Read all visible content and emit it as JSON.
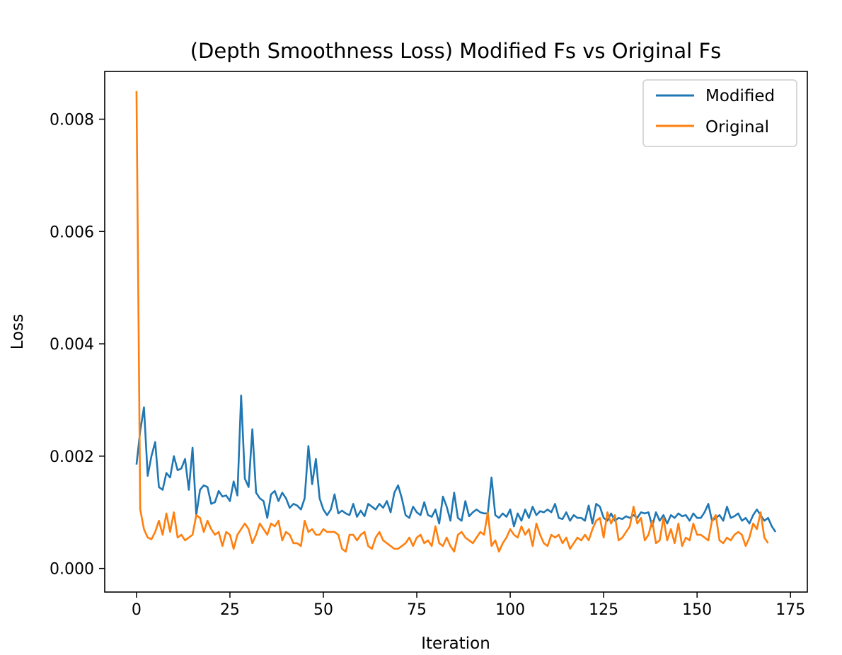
{
  "chart_data": {
    "type": "line",
    "title": "(Depth Smoothness Loss) Modified Fs vs Original Fs",
    "xlabel": "Iteration",
    "ylabel": "Loss",
    "xlim": [
      -8.5,
      179.5
    ],
    "ylim": [
      -0.00042,
      0.00885
    ],
    "xticks": [
      0,
      25,
      50,
      75,
      100,
      125,
      150,
      175
    ],
    "yticks": [
      0.0,
      0.002,
      0.004,
      0.006,
      0.008
    ],
    "ytick_labels": [
      "0.000",
      "0.002",
      "0.004",
      "0.006",
      "0.008"
    ],
    "grid": false,
    "legend": {
      "position": "top-right"
    },
    "series": [
      {
        "name": "Modified",
        "color": "#1f77b4",
        "values": [
          0.00185,
          0.00245,
          0.00287,
          0.00165,
          0.002,
          0.00225,
          0.00145,
          0.0014,
          0.0017,
          0.00162,
          0.002,
          0.00175,
          0.00178,
          0.00195,
          0.0014,
          0.00215,
          0.00095,
          0.0014,
          0.00148,
          0.00145,
          0.00115,
          0.00118,
          0.00138,
          0.00128,
          0.0013,
          0.0012,
          0.00155,
          0.0013,
          0.00308,
          0.0016,
          0.00145,
          0.00248,
          0.00135,
          0.00125,
          0.0012,
          0.0009,
          0.00132,
          0.00138,
          0.0012,
          0.00135,
          0.00125,
          0.00108,
          0.00115,
          0.00112,
          0.00105,
          0.00125,
          0.00218,
          0.0015,
          0.00195,
          0.00125,
          0.00105,
          0.00095,
          0.00105,
          0.00132,
          0.00098,
          0.00103,
          0.00098,
          0.00095,
          0.00115,
          0.00092,
          0.00103,
          0.00093,
          0.00115,
          0.0011,
          0.00105,
          0.00115,
          0.00108,
          0.0012,
          0.001,
          0.00135,
          0.00148,
          0.00125,
          0.00095,
          0.0009,
          0.0011,
          0.001,
          0.00095,
          0.00118,
          0.00095,
          0.00092,
          0.00105,
          0.0008,
          0.00128,
          0.0011,
          0.00085,
          0.00135,
          0.0009,
          0.00085,
          0.0012,
          0.00093,
          0.001,
          0.00105,
          0.001,
          0.00098,
          0.00098,
          0.00162,
          0.00095,
          0.0009,
          0.00098,
          0.00092,
          0.00105,
          0.00075,
          0.00098,
          0.00085,
          0.00105,
          0.0009,
          0.0011,
          0.00095,
          0.00102,
          0.001,
          0.00105,
          0.001,
          0.00115,
          0.0009,
          0.00088,
          0.001,
          0.00085,
          0.00095,
          0.0009,
          0.0009,
          0.00085,
          0.00112,
          0.0008,
          0.00115,
          0.0011,
          0.0009,
          0.00085,
          0.00098,
          0.00085,
          0.0009,
          0.00088,
          0.00093,
          0.0009,
          0.00095,
          0.0009,
          0.001,
          0.00098,
          0.001,
          0.00075,
          0.001,
          0.00085,
          0.00095,
          0.0008,
          0.00095,
          0.0009,
          0.00098,
          0.00093,
          0.00095,
          0.00085,
          0.00098,
          0.0009,
          0.0009,
          0.001,
          0.00115,
          0.00085,
          0.0009,
          0.00095,
          0.00085,
          0.0011,
          0.0009,
          0.00093,
          0.00098,
          0.00085,
          0.0009,
          0.0008,
          0.00095,
          0.00105,
          0.00095,
          0.00085,
          0.0009,
          0.00075,
          0.00065
        ]
      },
      {
        "name": "Original",
        "color": "#ff7f0e",
        "values": [
          0.0085,
          0.00105,
          0.0007,
          0.00055,
          0.00052,
          0.00065,
          0.00085,
          0.0006,
          0.00098,
          0.00065,
          0.001,
          0.00055,
          0.0006,
          0.0005,
          0.00055,
          0.0006,
          0.00095,
          0.0009,
          0.00065,
          0.00085,
          0.0007,
          0.0006,
          0.00065,
          0.0004,
          0.00065,
          0.0006,
          0.00035,
          0.0006,
          0.0007,
          0.0008,
          0.0007,
          0.00045,
          0.0006,
          0.0008,
          0.0007,
          0.0006,
          0.0008,
          0.00075,
          0.00085,
          0.0005,
          0.00065,
          0.0006,
          0.00045,
          0.00045,
          0.0004,
          0.00085,
          0.00065,
          0.0007,
          0.0006,
          0.0006,
          0.0007,
          0.00065,
          0.00065,
          0.00065,
          0.0006,
          0.00035,
          0.0003,
          0.0006,
          0.0006,
          0.0005,
          0.0006,
          0.00065,
          0.0004,
          0.00035,
          0.00055,
          0.00065,
          0.0005,
          0.00045,
          0.0004,
          0.00035,
          0.00035,
          0.0004,
          0.00045,
          0.00055,
          0.0004,
          0.00055,
          0.0006,
          0.00045,
          0.0005,
          0.0004,
          0.00075,
          0.00045,
          0.0004,
          0.00055,
          0.0004,
          0.0003,
          0.0006,
          0.00065,
          0.00055,
          0.0005,
          0.00045,
          0.00055,
          0.00065,
          0.0006,
          0.001,
          0.0004,
          0.0005,
          0.0003,
          0.00045,
          0.00055,
          0.0007,
          0.0006,
          0.00055,
          0.00075,
          0.0006,
          0.0007,
          0.0004,
          0.0008,
          0.0006,
          0.00045,
          0.0004,
          0.0006,
          0.00055,
          0.0006,
          0.00045,
          0.00055,
          0.00035,
          0.00045,
          0.00055,
          0.0005,
          0.0006,
          0.0005,
          0.0007,
          0.00085,
          0.0009,
          0.00055,
          0.001,
          0.0008,
          0.00095,
          0.0005,
          0.00055,
          0.00065,
          0.00075,
          0.0011,
          0.0008,
          0.0009,
          0.0005,
          0.0006,
          0.00085,
          0.00045,
          0.0005,
          0.0009,
          0.0005,
          0.0007,
          0.00045,
          0.0008,
          0.0004,
          0.00055,
          0.0005,
          0.0008,
          0.0006,
          0.0006,
          0.00055,
          0.0005,
          0.00085,
          0.00095,
          0.0005,
          0.00045,
          0.00055,
          0.0005,
          0.0006,
          0.00065,
          0.0006,
          0.0004,
          0.00055,
          0.0008,
          0.0007,
          0.001,
          0.00055,
          0.00045
        ]
      }
    ]
  }
}
